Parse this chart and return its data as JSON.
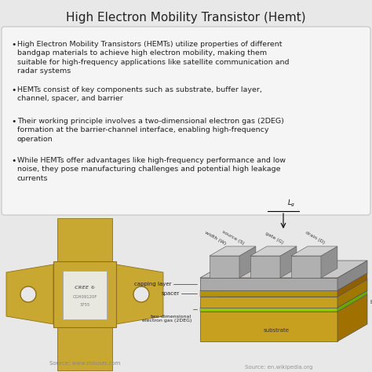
{
  "title": "High Electron Mobility Transistor (Hemt)",
  "title_fontsize": 11,
  "background_color": "#e8e8e8",
  "bullet_box_color": "#f5f5f5",
  "bullet_box_edge": "#cccccc",
  "bullets": [
    "High Electron Mobility Transistors (HEMTs) utilize properties of different\nbandgap materials to achieve high electron mobility, making them\nsuitable for high-frequency applications like satellite communication and\nradar systems",
    "HEMTs consist of key components such as substrate, buffer layer,\nchannel, spacer, and barrier",
    "Their working principle involves a two-dimensional electron gas (2DEG)\nformation at the barrier-channel interface, enabling high-frequency\noperation",
    "While HEMTs offer advantages like high-frequency performance and low\nnoise, they pose manufacturing challenges and potential high leakage\ncurrents"
  ],
  "bullet_fontsize": 6.8,
  "source_left": "Source: www.mouser.com",
  "source_right": "Source: en.wikipedia.org",
  "source_fontsize": 5.0,
  "gold": "#C8A830",
  "gold_dark": "#907018",
  "gold_light": "#D8B840",
  "gray_elec": "#B8B8B8",
  "gray_elec_top": "#D0D0D0",
  "substrate_color": "#C8A020",
  "substrate_top": "#B89010",
  "barrier_color": "#C8A020",
  "spacer_color": "#B89010",
  "deg_color": "#90C800",
  "capping_color": "#A8A8A8",
  "capping_top": "#C8C8C8"
}
